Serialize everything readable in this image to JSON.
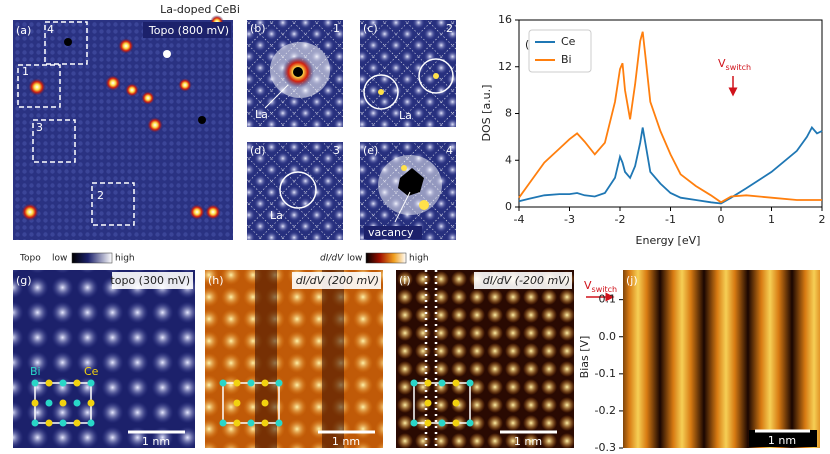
{
  "title": "La-doped CeBi",
  "panels": {
    "a": {
      "label": "(a)",
      "caption": "Topo (800 mV)",
      "regions": [
        "1",
        "2",
        "3",
        "4"
      ]
    },
    "b": {
      "label": "(b)",
      "number": "1",
      "site": "La"
    },
    "c": {
      "label": "(c)",
      "number": "2",
      "site": "La"
    },
    "d": {
      "label": "(d)",
      "number": "3",
      "site": "La"
    },
    "e": {
      "label": "(e)",
      "number": "4",
      "site": "vacancy"
    },
    "colorbars": [
      {
        "name": "Topo",
        "low": "low",
        "high": "high"
      },
      {
        "name": "dI/dV",
        "low": "low",
        "high": "high"
      }
    ],
    "g": {
      "label": "(g)",
      "caption": "topo (300 mV)",
      "atoms": [
        "Bi",
        "Ce"
      ],
      "scale": "1 nm"
    },
    "h": {
      "label": "(h)",
      "caption": "dI/dV (200 mV)",
      "scale": "1 nm"
    },
    "i": {
      "label": "(i)",
      "caption": "dI/dV (-200 mV)",
      "scale": "1 nm"
    },
    "j": {
      "label": "(j)",
      "ylabel": "Bias [V]",
      "scale": "1 nm",
      "marker": {
        "main": "V",
        "sub": "switch"
      },
      "ylim": [
        -0.3,
        0.18
      ],
      "yticks": [
        0.1,
        {
          "value": 0,
          "label": "0.0"
        },
        -0.1,
        -0.2,
        -0.3
      ]
    }
  },
  "chart_data": {
    "type": "line",
    "label": "(f)",
    "xlabel": "Energy  [eV]",
    "ylabel": "DOS [a.u.]",
    "annotation": {
      "main": "V",
      "sub": "switch"
    },
    "legend": "upper left",
    "x": [
      -4,
      -3.8,
      -3.5,
      -3.2,
      -3,
      -2.85,
      -2.7,
      -2.5,
      -2.3,
      -2.1,
      -2,
      -1.95,
      -1.9,
      -1.8,
      -1.7,
      -1.6,
      -1.55,
      -1.5,
      -1.4,
      -1.2,
      -1,
      -0.8,
      -0.5,
      -0.2,
      0,
      0.2,
      0.5,
      1,
      1.5,
      1.7,
      1.8,
      1.9,
      2
    ],
    "series": [
      {
        "name": "Ce",
        "color": "#1f77b4",
        "values": [
          0.5,
          0.7,
          1.0,
          1.1,
          1.1,
          1.2,
          1.0,
          0.9,
          1.2,
          2.5,
          4.3,
          3.8,
          3.0,
          2.5,
          3.5,
          5.5,
          6.8,
          5.5,
          3.0,
          2.0,
          1.2,
          0.8,
          0.6,
          0.4,
          0.3,
          0.8,
          1.6,
          3.0,
          4.8,
          6.0,
          6.8,
          6.3,
          6.5
        ]
      },
      {
        "name": "Bi",
        "color": "#ff7f0e",
        "values": [
          0.8,
          2.0,
          3.8,
          5.0,
          5.8,
          6.3,
          5.6,
          4.5,
          5.5,
          9.0,
          11.8,
          12.3,
          10.0,
          7.5,
          10.5,
          14.2,
          15.0,
          13.0,
          9.0,
          6.5,
          4.5,
          2.8,
          1.8,
          1.0,
          0.4,
          0.9,
          1.0,
          0.8,
          0.6,
          0.6,
          0.6,
          0.6,
          0.6
        ]
      }
    ],
    "xlim": [
      -4,
      2
    ],
    "ylim": [
      0,
      16
    ],
    "xticks": [
      -4,
      -3,
      -2,
      -1,
      0,
      1,
      2
    ],
    "yticks": [
      0,
      4,
      8,
      12,
      16
    ]
  }
}
